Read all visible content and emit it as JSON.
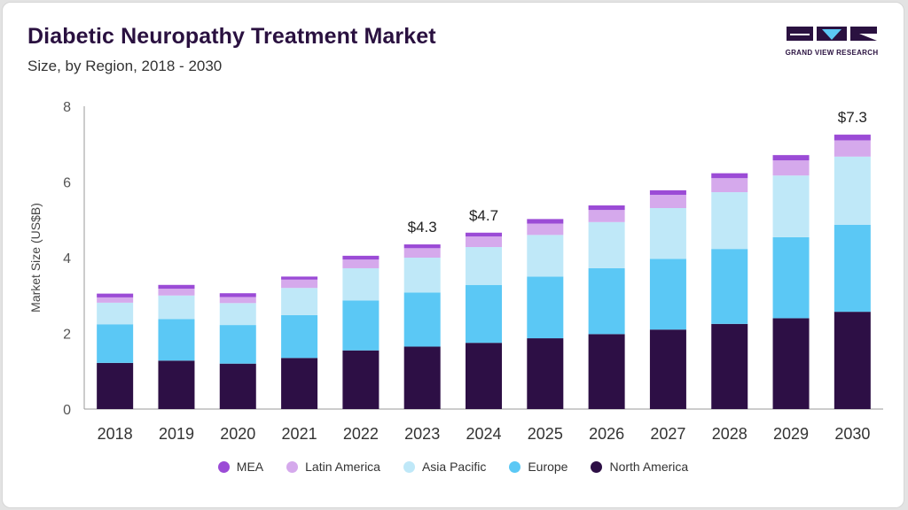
{
  "header": {
    "title": "Diabetic Neuropathy Treatment Market",
    "subtitle": "Size, by Region, 2018 - 2030"
  },
  "logo": {
    "text": "GRAND VIEW RESEARCH",
    "colors": [
      "#2a1140",
      "#5bc8f5"
    ]
  },
  "chart_data": {
    "type": "bar",
    "stacked": true,
    "title": "Diabetic Neuropathy Treatment Market",
    "subtitle": "Size, by Region, 2018 - 2030",
    "xlabel": "",
    "ylabel": "Market Size (US$B)",
    "ylim": [
      0,
      8
    ],
    "yticks": [
      0,
      2,
      4,
      6,
      8
    ],
    "grid": false,
    "legend_position": "bottom",
    "categories": [
      "2018",
      "2019",
      "2020",
      "2021",
      "2022",
      "2023",
      "2024",
      "2025",
      "2026",
      "2027",
      "2028",
      "2029",
      "2030"
    ],
    "series": [
      {
        "name": "North America",
        "color": "#2d0f45",
        "values": [
          1.22,
          1.28,
          1.2,
          1.35,
          1.55,
          1.65,
          1.75,
          1.87,
          1.98,
          2.1,
          2.25,
          2.4,
          2.57
        ]
      },
      {
        "name": "Europe",
        "color": "#5bc8f5",
        "values": [
          1.02,
          1.1,
          1.02,
          1.13,
          1.32,
          1.43,
          1.53,
          1.63,
          1.74,
          1.87,
          1.98,
          2.14,
          2.3
        ]
      },
      {
        "name": "Asia Pacific",
        "color": "#bfe8f8",
        "values": [
          0.57,
          0.62,
          0.58,
          0.72,
          0.85,
          0.92,
          1.0,
          1.1,
          1.22,
          1.34,
          1.5,
          1.63,
          1.8
        ]
      },
      {
        "name": "Latin America",
        "color": "#d5a9ec",
        "values": [
          0.14,
          0.18,
          0.16,
          0.22,
          0.23,
          0.25,
          0.28,
          0.3,
          0.32,
          0.35,
          0.37,
          0.4,
          0.43
        ]
      },
      {
        "name": "MEA",
        "color": "#9b4bd6",
        "values": [
          0.1,
          0.1,
          0.1,
          0.08,
          0.1,
          0.1,
          0.1,
          0.12,
          0.12,
          0.12,
          0.13,
          0.14,
          0.15
        ]
      }
    ],
    "annotations": [
      {
        "category": "2023",
        "label": "$4.3"
      },
      {
        "category": "2024",
        "label": "$4.7"
      },
      {
        "category": "2030",
        "label": "$7.3"
      }
    ],
    "legend_order": [
      "MEA",
      "Latin America",
      "Asia Pacific",
      "Europe",
      "North America"
    ]
  }
}
